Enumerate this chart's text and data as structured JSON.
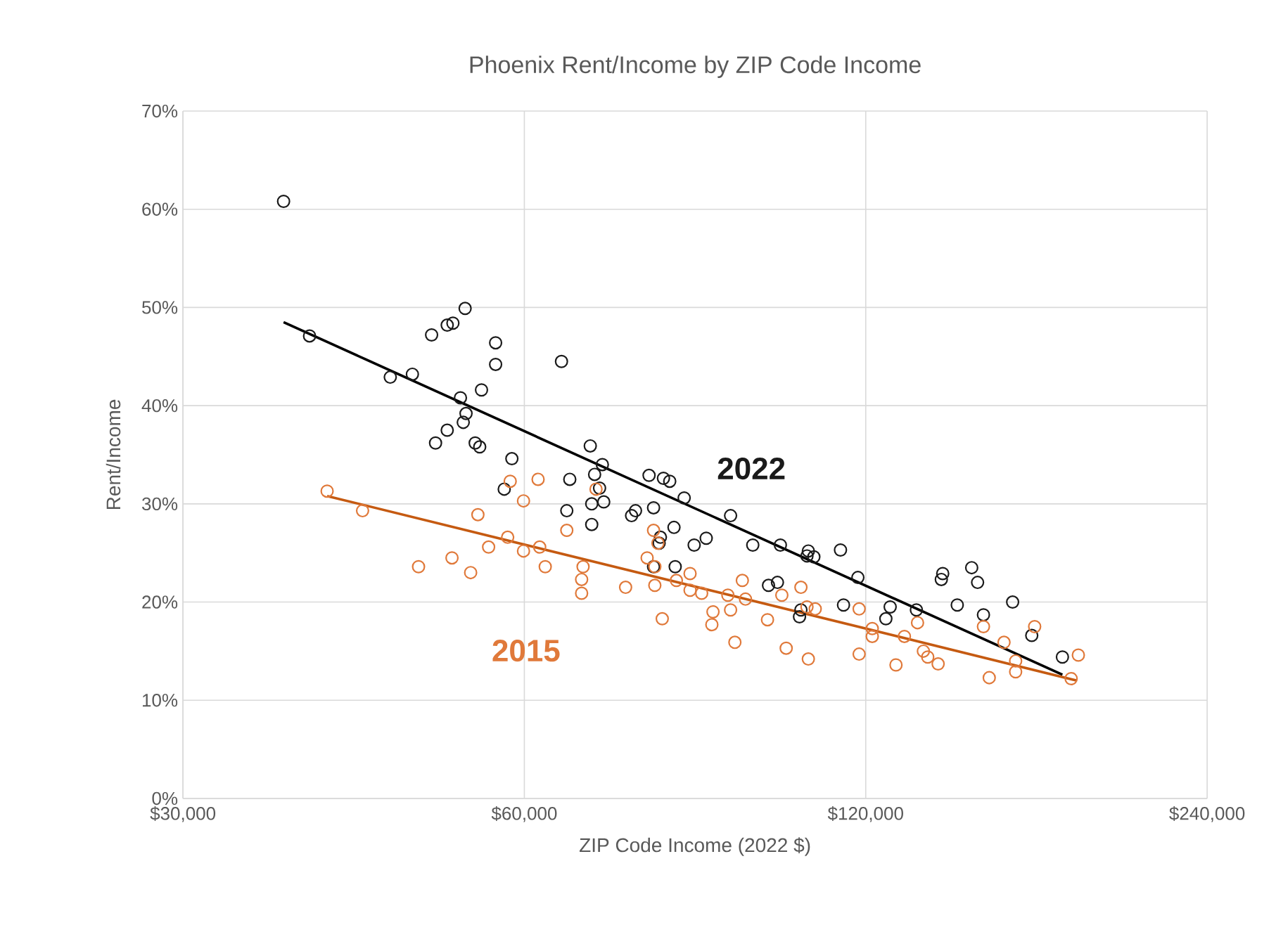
{
  "chart_data": {
    "type": "scatter",
    "title": "Phoenix Rent/Income by ZIP Code Income",
    "xlabel": "ZIP Code Income (2022 $)",
    "ylabel": "Rent/Income",
    "log": "x",
    "grid": true,
    "xlim": [
      30000,
      240000
    ],
    "xticks": [
      {
        "value": 30000,
        "label": "$30,000"
      },
      {
        "value": 60000,
        "label": "$60,000"
      },
      {
        "value": 120000,
        "label": "$120,000"
      },
      {
        "value": 240000,
        "label": "$240,000"
      }
    ],
    "ylim": [
      0,
      70
    ],
    "yticks": [
      {
        "value": 0,
        "label": "0%"
      },
      {
        "value": 10,
        "label": "10%"
      },
      {
        "value": 20,
        "label": "20%"
      },
      {
        "value": 30,
        "label": "30%"
      },
      {
        "value": 40,
        "label": "40%"
      },
      {
        "value": 50,
        "label": "50%"
      },
      {
        "value": 60,
        "label": "60%"
      },
      {
        "value": 70,
        "label": "70%"
      }
    ],
    "series": [
      {
        "name": "2022",
        "marker": "circle",
        "color": "#1a1a1a",
        "x": [
          36800,
          38800,
          45700,
          47800,
          49700,
          51300,
          51900,
          53200,
          56600,
          56600,
          64700,
          52700,
          55000,
          53300,
          53000,
          51300,
          50100,
          54300,
          54800,
          58500,
          68600,
          65800,
          57600,
          69200,
          70300,
          65400,
          68800,
          68800,
          69900,
          70500,
          77300,
          79600,
          80600,
          83000,
          74600,
          75200,
          78000,
          79100,
          81300,
          78900,
          84700,
          86800,
          78000,
          81500,
          91200,
          95400,
          100900,
          106800,
          106500,
          108000,
          114000,
          98500,
          100300,
          105200,
          104900,
          114700,
          118100,
          126100,
          125000,
          133000,
          140300,
          139900,
          148800,
          150600,
          144500,
          152400,
          161700,
          168100,
          178900
        ],
        "values": [
          60.8,
          47.1,
          42.9,
          43.2,
          47.2,
          48.2,
          48.4,
          49.9,
          46.4,
          44.2,
          44.5,
          40.8,
          41.6,
          39.2,
          38.3,
          37.5,
          36.2,
          36.2,
          35.8,
          34.6,
          35.9,
          32.5,
          31.5,
          33.0,
          34.0,
          29.3,
          27.9,
          30.0,
          31.6,
          30.2,
          32.9,
          32.6,
          32.3,
          30.6,
          28.8,
          29.3,
          29.6,
          26.6,
          27.6,
          26.0,
          25.8,
          26.5,
          23.6,
          23.6,
          28.8,
          25.8,
          25.8,
          25.2,
          24.7,
          24.6,
          25.3,
          21.7,
          22.0,
          19.2,
          18.5,
          19.7,
          22.5,
          19.5,
          18.3,
          19.2,
          22.9,
          22.3,
          23.5,
          22.0,
          19.7,
          18.7,
          20.0,
          16.6,
          14.4
        ]
      },
      {
        "name": "2015",
        "marker": "circle",
        "color": "#e0793a",
        "x": [
          40200,
          43200,
          48400,
          51800,
          53800,
          54600,
          55800,
          58000,
          58300,
          59900,
          61700,
          59900,
          61900,
          62600,
          65400,
          67600,
          67400,
          67400,
          69400,
          78000,
          78700,
          77000,
          78200,
          73700,
          78200,
          81700,
          84000,
          84000,
          86000,
          79400,
          88000,
          87800,
          90700,
          91200,
          93400,
          94000,
          92000,
          98300,
          101200,
          102100,
          105200,
          106500,
          108300,
          106800,
          118400,
          118400,
          121600,
          121600,
          127600,
          129800,
          133300,
          134900,
          136100,
          139000,
          152400,
          154200,
          158900,
          162700,
          162700,
          169100,
          184800,
          182100
        ],
        "values": [
          31.3,
          29.3,
          23.6,
          24.5,
          23.0,
          28.9,
          25.6,
          26.6,
          32.3,
          30.3,
          32.5,
          25.2,
          25.6,
          23.6,
          27.3,
          23.6,
          22.3,
          20.9,
          31.5,
          27.3,
          26.0,
          24.5,
          23.6,
          21.5,
          21.7,
          22.2,
          22.9,
          21.2,
          20.9,
          18.3,
          19.0,
          17.7,
          20.7,
          19.2,
          22.2,
          20.3,
          15.9,
          18.2,
          20.7,
          15.3,
          21.5,
          19.5,
          19.3,
          14.2,
          19.3,
          14.7,
          17.3,
          16.5,
          13.6,
          16.5,
          17.9,
          15.0,
          14.4,
          13.7,
          17.5,
          12.3,
          15.9,
          14.0,
          12.9,
          17.5,
          14.6,
          12.2
        ]
      },
      {
        "type": "line",
        "marker": "none",
        "color": "#000000",
        "x": [
          36800,
          178900
        ],
        "values": [
          48.5,
          12.6
        ]
      },
      {
        "type": "line",
        "marker": "none",
        "color": "#c55a11",
        "x": [
          40200,
          184300
        ],
        "values": [
          30.8,
          12.0
        ]
      }
    ]
  }
}
